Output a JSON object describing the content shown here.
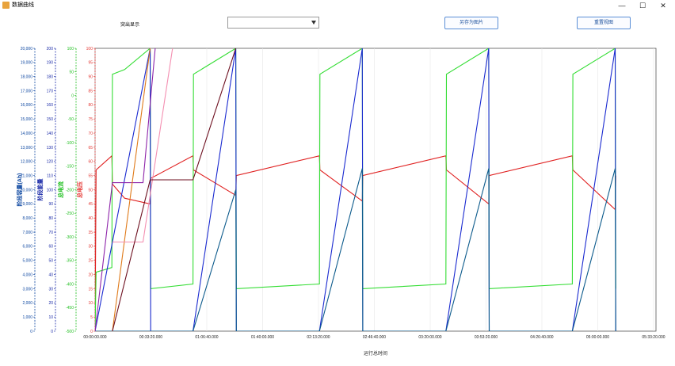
{
  "window": {
    "title": "数据曲线",
    "minimize_glyph": "—",
    "maximize_glyph": "☐",
    "close_glyph": "✕"
  },
  "toolbar": {
    "highlight_label": "突出显示",
    "highlight_value": "",
    "save_image_label": "另存为图片",
    "reset_view_label": "重置视图"
  },
  "chart_data": {
    "type": "line",
    "xlabel": "运行总时间",
    "x_ticks": [
      "00:00:00.000",
      "00:33:20.000",
      "01:06:40.000",
      "01:40:00.000",
      "02:13:20.000",
      "02:46:40.000",
      "03:20:00.000",
      "03:53:20.000",
      "04:26:40.000",
      "05:00:00.000",
      "05:33:20.000"
    ],
    "x_range_seconds": [
      0,
      20000
    ],
    "axes": [
      {
        "id": "step_capacity",
        "label": "阶段容量(Ah)",
        "color": "#0d47a1",
        "ylim": [
          0,
          20000
        ],
        "ticks": [
          "0",
          "1,000",
          "2,000",
          "3,000",
          "4,000",
          "5,000",
          "6,000",
          "7,000",
          "8,000",
          "9,000",
          "10,000",
          "11,000",
          "12,000",
          "13,000",
          "14,000",
          "15,000",
          "16,000",
          "17,000",
          "18,000",
          "19,000",
          "20,000"
        ]
      },
      {
        "id": "step_energy",
        "label": "阶段能量",
        "color": "#1a2aa8",
        "ylim": [
          0,
          200
        ],
        "ticks": [
          "0",
          "10",
          "20",
          "30",
          "40",
          "50",
          "60",
          "70",
          "80",
          "90",
          "100",
          "110",
          "120",
          "130",
          "140",
          "150",
          "160",
          "170",
          "180",
          "190",
          "200"
        ]
      },
      {
        "id": "total_current",
        "label": "总电流",
        "color": "#1fbf1f",
        "ylim": [
          -500,
          100
        ],
        "ticks": [
          "-500",
          "-450",
          "-400",
          "-350",
          "-300",
          "-250",
          "-200",
          "-150",
          "-100",
          "-50",
          "0",
          "50",
          "100"
        ]
      },
      {
        "id": "total_voltage",
        "label": "总电压",
        "color": "#e53935",
        "ylim": [
          0,
          100
        ],
        "ticks": [
          "0",
          "5",
          "10",
          "15",
          "20",
          "25",
          "30",
          "35",
          "40",
          "45",
          "50",
          "55",
          "60",
          "65",
          "70",
          "75",
          "80",
          "85",
          "90",
          "95",
          "100"
        ]
      }
    ],
    "series": [
      {
        "color": "#e02020",
        "axis": "total_voltage",
        "points": [
          [
            0,
            0
          ],
          [
            100,
            57
          ],
          [
            1650,
            62
          ],
          [
            1700,
            52
          ],
          [
            2900,
            47
          ],
          [
            5400,
            45
          ],
          [
            5450,
            54
          ],
          [
            9600,
            62
          ],
          [
            9650,
            57
          ],
          [
            13800,
            48
          ],
          [
            13850,
            55
          ],
          [
            22000,
            62
          ],
          [
            22050,
            57
          ],
          [
            26200,
            46
          ],
          [
            26250,
            55
          ],
          [
            34400,
            62
          ],
          [
            34450,
            57
          ],
          [
            38600,
            45
          ],
          [
            38650,
            55
          ],
          [
            46800,
            62
          ],
          [
            46850,
            57
          ],
          [
            51000,
            43
          ],
          [
            51050,
            55
          ]
        ]
      },
      {
        "color": "#33dd33",
        "axis": "total_current",
        "points": [
          [
            0,
            -500
          ],
          [
            100,
            -375
          ],
          [
            1650,
            -365
          ],
          [
            1700,
            45
          ],
          [
            2900,
            55
          ],
          [
            5400,
            100
          ],
          [
            5450,
            -410
          ],
          [
            9600,
            -400
          ],
          [
            9650,
            45
          ],
          [
            13800,
            100
          ],
          [
            13850,
            -410
          ],
          [
            22000,
            -400
          ],
          [
            22050,
            45
          ],
          [
            26200,
            100
          ],
          [
            26250,
            -410
          ],
          [
            34400,
            -400
          ],
          [
            34450,
            45
          ],
          [
            38600,
            100
          ],
          [
            38650,
            -410
          ],
          [
            46800,
            -400
          ],
          [
            46850,
            45
          ],
          [
            51000,
            100
          ],
          [
            51050,
            -410
          ]
        ]
      },
      {
        "color": "#1a2ad0",
        "axis": "step_energy",
        "points": [
          [
            0,
            0
          ],
          [
            5400,
            200
          ],
          [
            5450,
            0
          ],
          [
            9600,
            0
          ],
          [
            13800,
            200
          ],
          [
            13850,
            0
          ],
          [
            22000,
            0
          ],
          [
            26200,
            200
          ],
          [
            26250,
            0
          ],
          [
            34400,
            0
          ],
          [
            38600,
            200
          ],
          [
            38650,
            0
          ],
          [
            46800,
            0
          ],
          [
            51000,
            200
          ],
          [
            51050,
            0
          ]
        ]
      },
      {
        "color": "#0d5b8c",
        "axis": "step_capacity",
        "points": [
          [
            0,
            0
          ],
          [
            9600,
            0
          ],
          [
            13800,
            10000
          ],
          [
            13850,
            0
          ],
          [
            22000,
            0
          ],
          [
            26200,
            11500
          ],
          [
            26250,
            0
          ],
          [
            34400,
            0
          ],
          [
            38600,
            11500
          ],
          [
            38650,
            0
          ],
          [
            46800,
            0
          ],
          [
            51000,
            11500
          ],
          [
            51050,
            0
          ]
        ]
      },
      {
        "color": "#8e24aa",
        "axis": "step_energy",
        "points": [
          [
            0,
            0
          ],
          [
            1700,
            105
          ],
          [
            4700,
            105
          ],
          [
            5900,
            200
          ]
        ]
      },
      {
        "color": "#e07a1a",
        "axis": "step_energy",
        "points": [
          [
            1700,
            0
          ],
          [
            5400,
            200
          ]
        ]
      },
      {
        "color": "#f48fb1",
        "axis": "step_energy",
        "points": [
          [
            1700,
            63
          ],
          [
            4700,
            63
          ],
          [
            7600,
            200
          ]
        ]
      },
      {
        "color": "#6d0f1f",
        "axis": "step_energy",
        "points": [
          [
            1700,
            0
          ],
          [
            5400,
            107
          ],
          [
            9600,
            107
          ],
          [
            13800,
            200
          ]
        ]
      }
    ]
  }
}
